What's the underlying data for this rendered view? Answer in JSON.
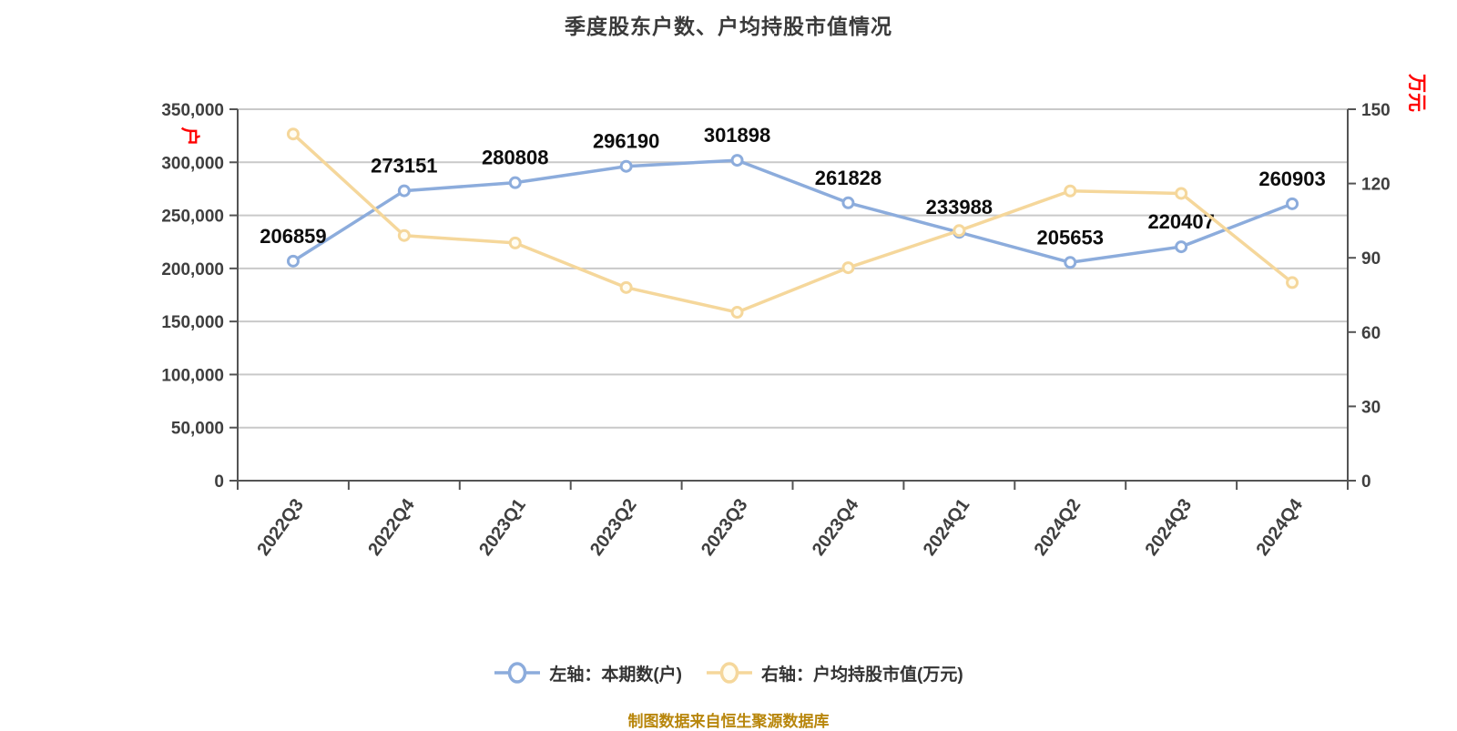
{
  "chart": {
    "title": "季度股东户数、户均持股市值情况",
    "source_note": "制图数据来自恒生聚源数据库",
    "left_axis_unit": "户",
    "right_axis_unit": "万元",
    "legend": [
      {
        "label": "左轴：本期数(户)",
        "color": "#8cacdc",
        "marker_fill": "#ffffff"
      },
      {
        "label": "右轴：户均持股市值(万元)",
        "color": "#f5d79b",
        "marker_fill": "#fffdf3"
      }
    ],
    "colors": {
      "grid": "#c9c9c9",
      "axis": "#545454",
      "tick_text": "#3f3f3f",
      "data_label": "#0d0d0d",
      "unit_text": "#ff0000",
      "source_text": "#b8860b"
    }
  },
  "chart_data": {
    "type": "line",
    "title": "季度股东户数、户均持股市值情况",
    "categories": [
      "2022Q3",
      "2022Q4",
      "2023Q1",
      "2023Q2",
      "2023Q3",
      "2023Q4",
      "2024Q1",
      "2024Q2",
      "2024Q3",
      "2024Q4"
    ],
    "series": [
      {
        "name": "左轴：本期数(户)",
        "yaxis": "left",
        "color": "#8cacdc",
        "marker_fill": "#ffffff",
        "show_labels": true,
        "values": [
          206859,
          273151,
          280808,
          296190,
          301898,
          261828,
          233988,
          205653,
          220407,
          260903
        ]
      },
      {
        "name": "右轴：户均持股市值(万元)",
        "yaxis": "right",
        "color": "#f5d79b",
        "marker_fill": "#fffdf3",
        "show_labels": false,
        "values": [
          140,
          99,
          96,
          78,
          68,
          86,
          101,
          117,
          116,
          80
        ]
      }
    ],
    "left_axis": {
      "min": 0,
      "max": 350000,
      "tick_step": 50000,
      "unit": "户"
    },
    "right_axis": {
      "min": 0,
      "max": 150,
      "tick_step": 30,
      "unit": "万元"
    },
    "grid": "horizontal-only",
    "legend_position": "bottom",
    "x_label_rotation_deg": -54
  }
}
